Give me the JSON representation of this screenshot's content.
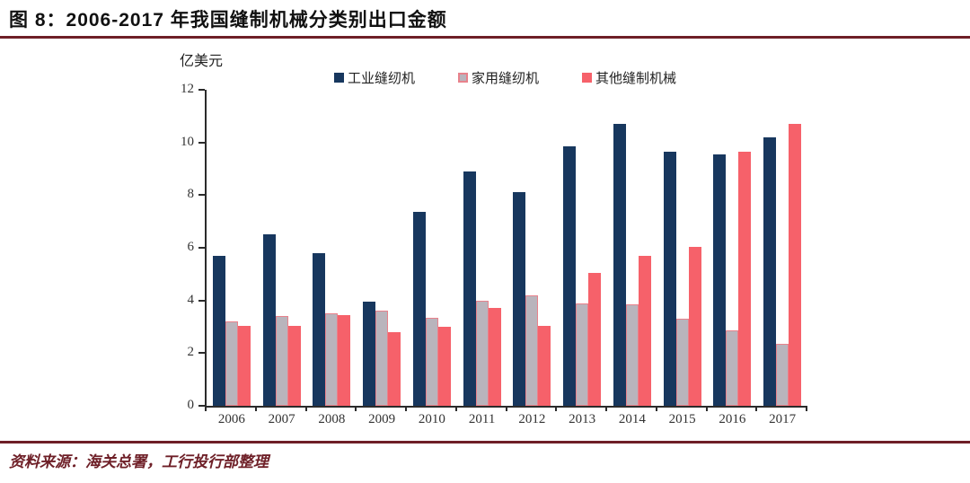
{
  "header": {
    "title": "图 8：2006-2017 年我国缝制机械分类别出口金额"
  },
  "footer": {
    "source": "资料来源：海关总署，工行投行部整理"
  },
  "colors": {
    "rule": "#6e1f27",
    "axis": "#2b2b2b",
    "title_text": "#111111",
    "source_text": "#6e1f27",
    "industrial_blue": "#17375e",
    "household_grey": "#b9b4bc",
    "household_border_pink": "#e8828c",
    "other_red": "#f6616a"
  },
  "chart_data": {
    "type": "bar",
    "title": "图 8：2006-2017 年我国缝制机械分类别出口金额",
    "ylabel": "亿美元",
    "xlabel": "",
    "categories": [
      "2006",
      "2007",
      "2008",
      "2009",
      "2010",
      "2011",
      "2012",
      "2013",
      "2014",
      "2015",
      "2016",
      "2017"
    ],
    "series": [
      {
        "name": "工业缝纫机",
        "color": "#17375e",
        "values": [
          5.7,
          6.5,
          5.8,
          3.95,
          7.35,
          8.9,
          8.1,
          9.85,
          10.7,
          9.65,
          9.55,
          10.2
        ]
      },
      {
        "name": "家用缝纫机",
        "color": "#b9b4bc",
        "border_color": "#e8828c",
        "values": [
          3.2,
          3.4,
          3.5,
          3.6,
          3.35,
          4.0,
          4.2,
          3.9,
          3.85,
          3.3,
          2.85,
          2.35
        ]
      },
      {
        "name": "其他缝制机械",
        "color": "#f6616a",
        "values": [
          3.05,
          3.05,
          3.45,
          2.8,
          3.0,
          3.7,
          3.05,
          5.05,
          5.7,
          6.05,
          9.65,
          10.7
        ]
      }
    ],
    "ylim": [
      0,
      12
    ],
    "yticks": [
      0,
      2,
      4,
      6,
      8,
      10,
      12
    ],
    "grid": false,
    "legend_position": "top-center"
  }
}
